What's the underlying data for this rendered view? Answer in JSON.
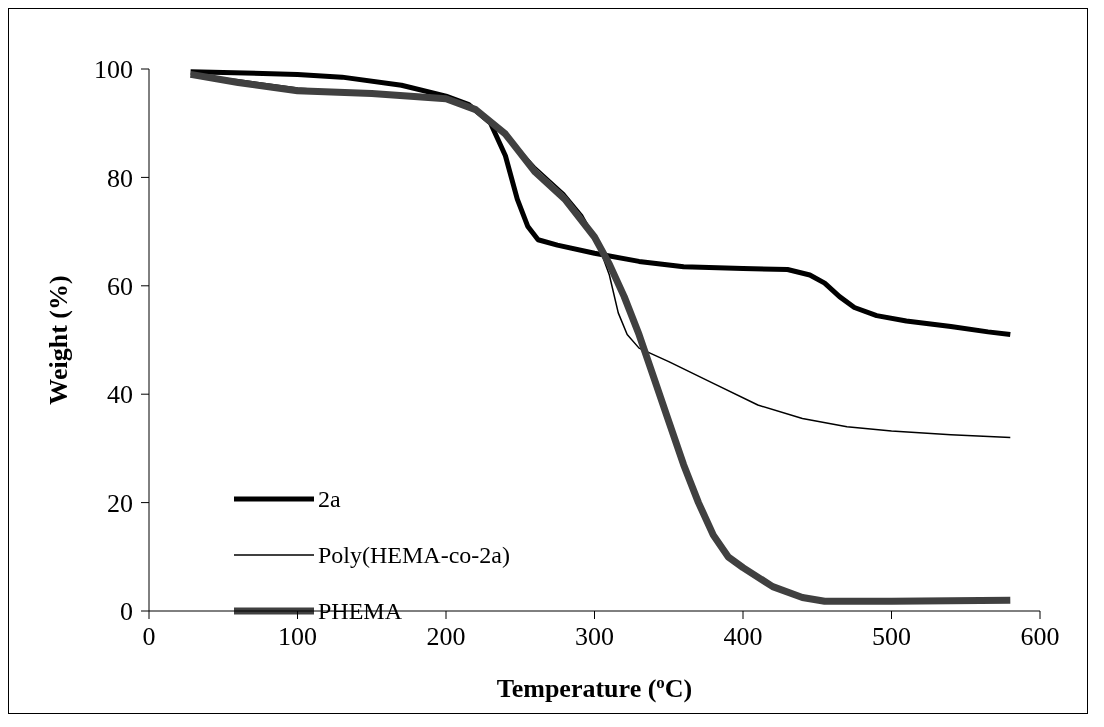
{
  "chart_data": {
    "type": "line",
    "xlabel": "Temperature ($^{o}$C)",
    "ylabel": "Weight (%)",
    "xlim": [
      0,
      600
    ],
    "xticks": [
      0,
      100,
      200,
      300,
      400,
      500,
      600
    ],
    "ylim": [
      0,
      100
    ],
    "yticks": [
      0,
      20,
      40,
      60,
      80,
      100
    ],
    "grid": false,
    "legend": "left",
    "marker": "none",
    "line_style": "solid",
    "series": [
      {
        "name": "2a",
        "color": "#000000",
        "x": [
          28,
          100,
          130,
          170,
          200,
          215,
          230,
          240,
          248,
          255,
          262,
          275,
          300,
          330,
          360,
          400,
          430,
          445,
          455,
          465,
          475,
          490,
          510,
          540,
          565,
          580
        ],
        "values": [
          99.5,
          99,
          98.5,
          97,
          95,
          93.5,
          90,
          84,
          76,
          71,
          68.5,
          67.5,
          66,
          64.5,
          63.5,
          63.2,
          63,
          62,
          60.5,
          58,
          56,
          54.5,
          53.5,
          52.5,
          51.5,
          51
        ]
      },
      {
        "name": "Poly(HEMA-co-2a)",
        "color": "#000000",
        "x": [
          28,
          60,
          100,
          150,
          200,
          220,
          240,
          260,
          280,
          292,
          302,
          310,
          316,
          322,
          330,
          350,
          380,
          410,
          440,
          470,
          500,
          540,
          580
        ],
        "values": [
          99,
          98,
          96.5,
          95.5,
          94.5,
          92.5,
          88,
          82,
          77,
          73,
          68,
          62,
          55,
          51,
          48.5,
          46,
          42,
          38,
          35.5,
          34,
          33.2,
          32.5,
          32
        ]
      },
      {
        "name": "PHEMA",
        "color": "#404040",
        "x": [
          28,
          60,
          100,
          150,
          200,
          220,
          240,
          260,
          280,
          300,
          310,
          320,
          330,
          340,
          350,
          360,
          370,
          380,
          390,
          400,
          420,
          440,
          455,
          500,
          580
        ],
        "values": [
          99,
          97.5,
          96,
          95.5,
          94.5,
          92.5,
          88,
          81,
          76,
          69,
          64,
          58,
          51,
          43,
          35,
          27,
          20,
          14,
          10,
          8,
          4.5,
          2.5,
          1.8,
          1.8,
          2
        ]
      }
    ]
  }
}
